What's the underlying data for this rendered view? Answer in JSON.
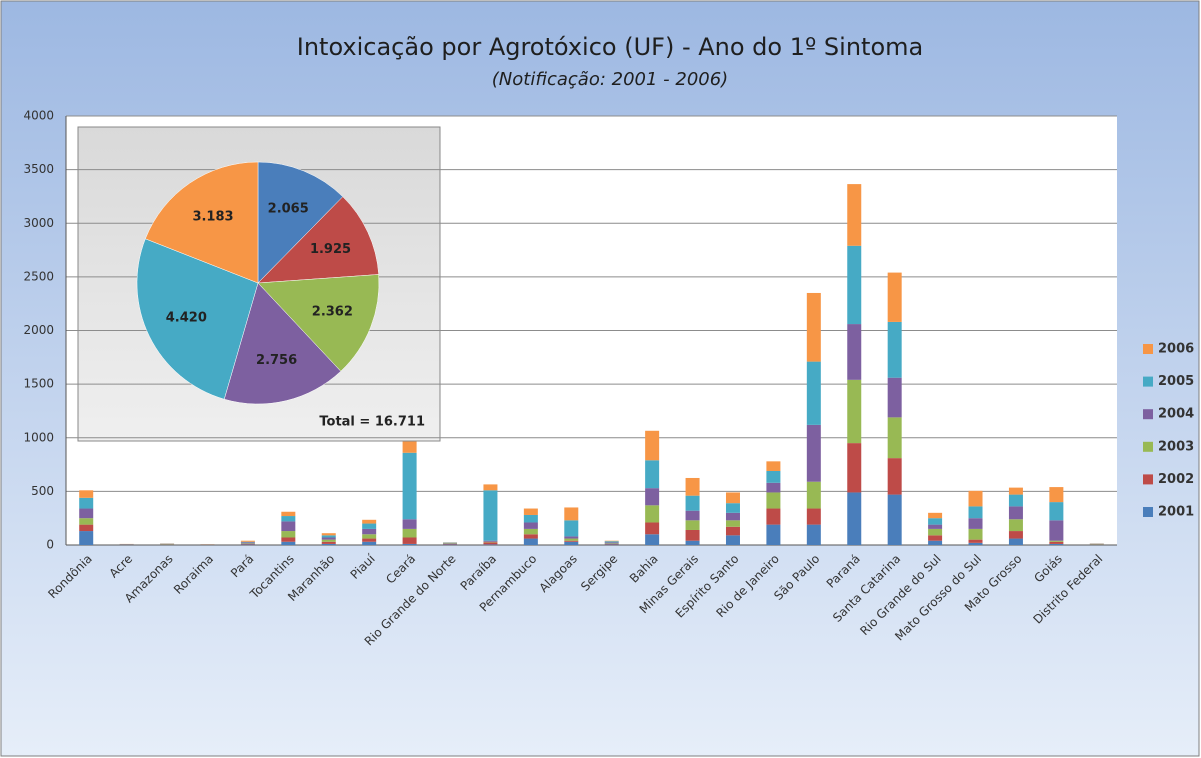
{
  "chart_data": [
    {
      "type": "stacked_bar",
      "title": "Intoxicação por Agrotóxico (UF) - Ano do 1º Sintoma",
      "subtitle": "(Notificação: 2001 - 2006)",
      "categories": [
        "Rondônia",
        "Acre",
        "Amazonas",
        "Roraima",
        "Pará",
        "Tocantins",
        "Maranhão",
        "Piauí",
        "Ceará",
        "Rio Grande do Norte",
        "Paraíba",
        "Pernambuco",
        "Alagoas",
        "Sergipe",
        "Bahia",
        "Minas Gerais",
        "Espírito Santo",
        "Rio de Janeiro",
        "São Paulo",
        "Paraná",
        "Santa Catarina",
        "Rio Grande do Sul",
        "Mato Grosso do Sul",
        "Mato Grosso",
        "Goiás",
        "Distrito Federal"
      ],
      "series": [
        {
          "name": "2001",
          "color": "#4a7ebb",
          "values": [
            130,
            2,
            3,
            2,
            5,
            30,
            10,
            30,
            10,
            5,
            5,
            60,
            30,
            5,
            100,
            40,
            90,
            190,
            190,
            490,
            470,
            40,
            20,
            60,
            10,
            3
          ]
        },
        {
          "name": "2002",
          "color": "#be4b48",
          "values": [
            60,
            2,
            3,
            1,
            5,
            40,
            20,
            30,
            60,
            5,
            20,
            40,
            10,
            5,
            110,
            100,
            80,
            150,
            150,
            460,
            340,
            50,
            30,
            70,
            20,
            3
          ]
        },
        {
          "name": "2003",
          "color": "#98b954",
          "values": [
            60,
            2,
            3,
            1,
            5,
            60,
            20,
            40,
            80,
            5,
            5,
            50,
            20,
            5,
            160,
            90,
            60,
            150,
            250,
            590,
            380,
            60,
            100,
            110,
            10,
            3
          ]
        },
        {
          "name": "2004",
          "color": "#7d60a0",
          "values": [
            90,
            2,
            2,
            1,
            10,
            90,
            20,
            50,
            90,
            5,
            10,
            60,
            20,
            10,
            160,
            90,
            70,
            90,
            530,
            520,
            370,
            40,
            100,
            120,
            190,
            2
          ]
        },
        {
          "name": "2005",
          "color": "#46aac5",
          "values": [
            100,
            1,
            2,
            1,
            5,
            50,
            20,
            50,
            620,
            3,
            470,
            70,
            150,
            10,
            260,
            140,
            90,
            110,
            590,
            730,
            520,
            60,
            110,
            110,
            170,
            2
          ]
        },
        {
          "name": "2006",
          "color": "#f79646",
          "values": [
            70,
            1,
            2,
            2,
            10,
            40,
            20,
            35,
            105,
            2,
            55,
            60,
            120,
            5,
            275,
            165,
            100,
            90,
            640,
            575,
            460,
            50,
            145,
            65,
            140,
            2
          ]
        }
      ],
      "ylim": [
        0,
        4000
      ],
      "yticks": [
        0,
        500,
        1000,
        1500,
        2000,
        2500,
        3000,
        3500,
        4000
      ],
      "grid": true,
      "legend": "right"
    },
    {
      "type": "pie",
      "values": [
        2065,
        1925,
        2362,
        2756,
        4420,
        3183
      ],
      "value_labels": [
        "2.065",
        "1.925",
        "2.362",
        "2.756",
        "4.420",
        "3.183"
      ],
      "colors": [
        "#4a7ebb",
        "#be4b48",
        "#98b954",
        "#7d60a0",
        "#46aac5",
        "#f79646"
      ],
      "annotation": "Total = 16.711"
    }
  ]
}
